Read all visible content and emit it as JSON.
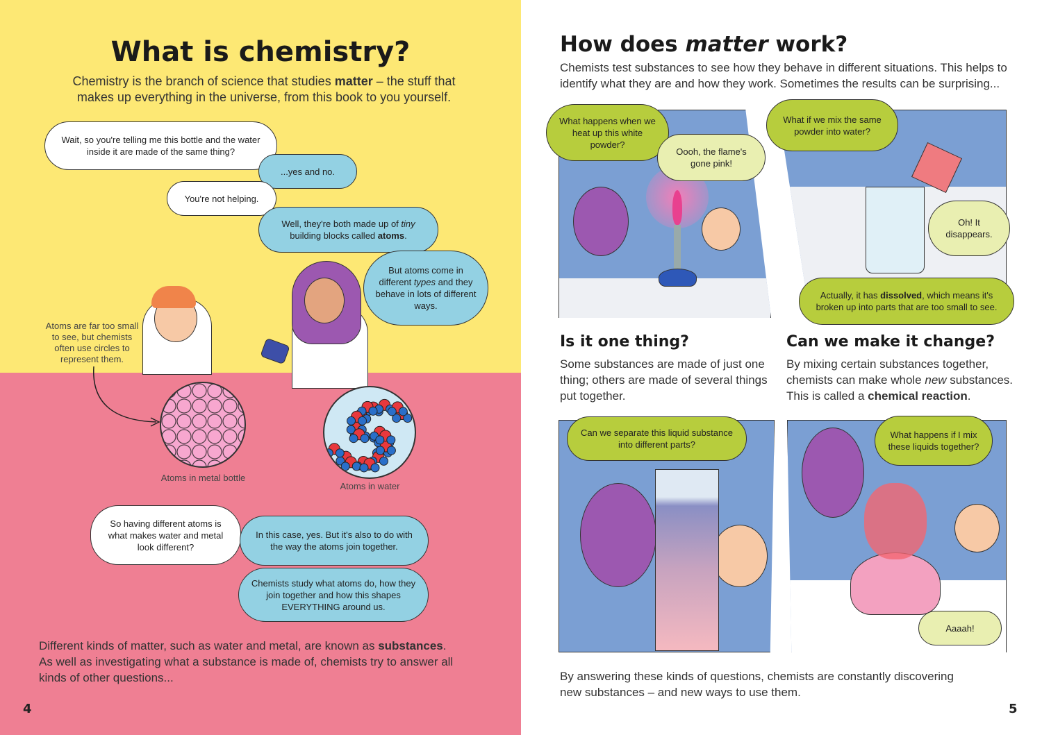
{
  "left": {
    "title": "What is chemistry?",
    "intro": [
      "Chemistry is the branch of science that studies ",
      "matter",
      " – the stuff that makes up everything in the universe, from this book to you yourself."
    ],
    "bubbles": {
      "b1": "Wait, so you're telling me this bottle and the water inside it are made of the same thing?",
      "b2": "...yes and no.",
      "b3": "You're not helping.",
      "b4": [
        "Well, they're both made up of ",
        "tiny",
        " building blocks called ",
        "atoms",
        "."
      ],
      "b5": [
        "But atoms come in different ",
        "types",
        " and they behave in lots of different ways."
      ],
      "b6": "So having different atoms is what makes water and metal look different?",
      "b7": "In this case, yes. But it's also to do with the way the atoms join together.",
      "b8": "Chemists study what atoms do, how they join together and how this shapes EVERYTHING around us."
    },
    "note": "Atoms are far too small to see, but chemists often use circles to represent them.",
    "caption_metal": "Atoms in metal bottle",
    "caption_water": "Atoms in water",
    "outro": [
      "Different kinds of matter, such as water and metal, are known as ",
      "substances",
      ". As well as investigating what a substance is made of, chemists try to answer all kinds of other questions..."
    ],
    "page_number": "4"
  },
  "right": {
    "title": [
      "How does ",
      "matter",
      " work?"
    ],
    "intro": "Chemists test substances to see how they behave in different situations. This helps to identify what they are and how they work. Sometimes the results can be surprising...",
    "panel1": {
      "q": "What happens when we heat up this white powder?",
      "a": "Oooh, the flame's gone pink!"
    },
    "panel2": {
      "q": "What if we mix the same powder into water?",
      "a": "Oh! It disappears.",
      "c": [
        "Actually, it has ",
        "dissolved",
        ", which means it's broken up into parts that are too small to see."
      ]
    },
    "section1": {
      "heading": "Is it one thing?",
      "body": "Some substances are made of just one thing; others are made of several things put together."
    },
    "section2": {
      "heading": "Can we make it change?",
      "body": [
        "By mixing certain substances together, chemists can make whole ",
        "new",
        " substances. This is called a ",
        "chemical reaction",
        "."
      ]
    },
    "panel3": {
      "q": "Can we separate this liquid substance into different parts?"
    },
    "panel4": {
      "q": "What happens if I mix these liquids together?",
      "a": "Aaaah!"
    },
    "outro": "By answering these kinds of questions, chemists are constantly discovering new substances – and new ways to use them.",
    "page_number": "5"
  },
  "colors": {
    "yellow": "#fde874",
    "pink": "#ef7f93",
    "blue_bubble": "#93d1e3",
    "green_bubble": "#b7cd3d",
    "panel_blue": "#7b9fd3"
  }
}
